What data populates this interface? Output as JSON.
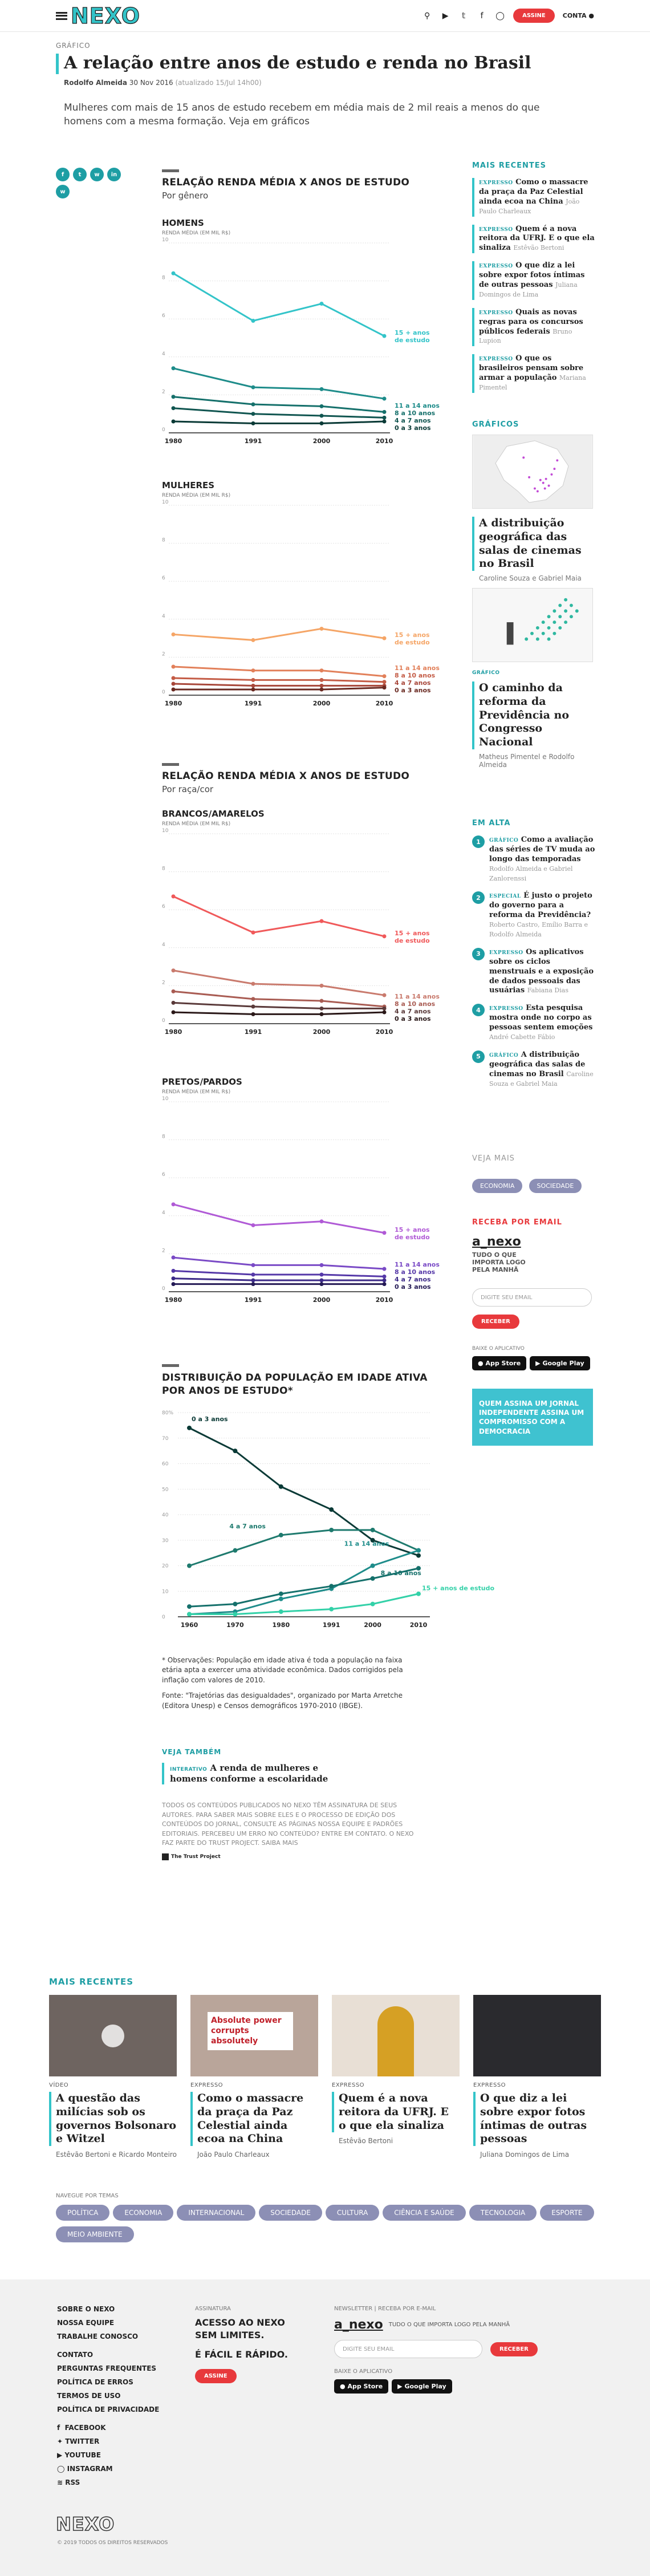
{
  "header": {
    "logo": "NEXO",
    "subscribe": "ASSINE",
    "account": "CONTA"
  },
  "article": {
    "kicker": "GRÁFICO",
    "title": "A relação entre anos de estudo e renda no Brasil",
    "author": "Rodolfo Almeida",
    "date": "30 Nov 2016",
    "updated": "(atualizado 15/Jul 14h00)",
    "lede": "Mulheres com mais de 15 anos de estudo recebem em média mais de 2 mil reais a menos do que homens com a mesma formação. Veja em gráficos"
  },
  "share": [
    "f",
    "t",
    "w",
    "in",
    "w"
  ],
  "section1": {
    "title": "RELAÇÃO RENDA MÉDIA X ANOS DE ESTUDO",
    "subtitle": "Por gênero"
  },
  "section2": {
    "title": "RELAÇÃO RENDA MÉDIA X ANOS DE ESTUDO",
    "subtitle": "Por raça/cor"
  },
  "chart_data": [
    {
      "type": "line",
      "title": "HOMENS",
      "ylabel": "RENDA MÉDIA (EM MIL R$)",
      "x": [
        1980,
        1991,
        2000,
        2010
      ],
      "ylim": [
        0,
        10
      ],
      "yticks": [
        0,
        2,
        4,
        6,
        8,
        10
      ],
      "series": [
        {
          "name": "15 + anos de estudo",
          "values": [
            8.4,
            5.9,
            6.8,
            5.1
          ],
          "color": "#33c4c9"
        },
        {
          "name": "11 a 14 anos",
          "values": [
            3.4,
            2.4,
            2.3,
            1.8
          ],
          "color": "#1e8c8a"
        },
        {
          "name": "8 a 10 anos",
          "values": [
            1.9,
            1.5,
            1.4,
            1.1
          ],
          "color": "#15706b"
        },
        {
          "name": "4 a 7 anos",
          "values": [
            1.3,
            1.0,
            0.9,
            0.8
          ],
          "color": "#105550"
        },
        {
          "name": "0 a 3 anos",
          "values": [
            0.6,
            0.5,
            0.5,
            0.6
          ],
          "color": "#0a3a36"
        }
      ]
    },
    {
      "type": "line",
      "title": "MULHERES",
      "ylabel": "RENDA MÉDIA (EM MIL R$)",
      "x": [
        1980,
        1991,
        2000,
        2010
      ],
      "ylim": [
        0,
        10
      ],
      "yticks": [
        0,
        2,
        4,
        6,
        8,
        10
      ],
      "series": [
        {
          "name": "15 + anos de estudo",
          "values": [
            3.2,
            2.9,
            3.5,
            3.0
          ],
          "color": "#f5a566"
        },
        {
          "name": "11 a 14 anos",
          "values": [
            1.5,
            1.3,
            1.3,
            1.0
          ],
          "color": "#e2805a"
        },
        {
          "name": "8 a 10 anos",
          "values": [
            0.9,
            0.8,
            0.8,
            0.7
          ],
          "color": "#c45c46"
        },
        {
          "name": "4 a 7 anos",
          "values": [
            0.6,
            0.5,
            0.5,
            0.5
          ],
          "color": "#a8473a"
        },
        {
          "name": "0 a 3 anos",
          "values": [
            0.3,
            0.3,
            0.3,
            0.4
          ],
          "color": "#6a2a22"
        }
      ]
    },
    {
      "type": "line",
      "title": "BRANCOS/AMARELOS",
      "ylabel": "RENDA MÉDIA (EM MIL R$)",
      "x": [
        1980,
        1991,
        2000,
        2010
      ],
      "ylim": [
        0,
        10
      ],
      "yticks": [
        0,
        2,
        4,
        6,
        8,
        10
      ],
      "series": [
        {
          "name": "15 + anos de estudo",
          "values": [
            6.7,
            4.8,
            5.4,
            4.6
          ],
          "color": "#f0595a"
        },
        {
          "name": "11 a 14 anos",
          "values": [
            2.8,
            2.1,
            2.0,
            1.5
          ],
          "color": "#c97a6d"
        },
        {
          "name": "8 a 10 anos",
          "values": [
            1.7,
            1.3,
            1.2,
            0.9
          ],
          "color": "#a95c53"
        },
        {
          "name": "4 a 7 anos",
          "values": [
            1.1,
            0.9,
            0.8,
            0.8
          ],
          "color": "#5a3a3a"
        },
        {
          "name": "0 a 3 anos",
          "values": [
            0.6,
            0.5,
            0.5,
            0.6
          ],
          "color": "#2a1818"
        }
      ]
    },
    {
      "type": "line",
      "title": "PRETOS/PARDOS",
      "ylabel": "RENDA MÉDIA (EM MIL R$)",
      "x": [
        1980,
        1991,
        2000,
        2010
      ],
      "ylim": [
        0,
        10
      ],
      "yticks": [
        0,
        2,
        4,
        6,
        8,
        10
      ],
      "series": [
        {
          "name": "15 + anos de estudo",
          "values": [
            4.6,
            3.5,
            3.7,
            3.1
          ],
          "color": "#b05ad6"
        },
        {
          "name": "11 a 14 anos",
          "values": [
            1.8,
            1.4,
            1.4,
            1.2
          ],
          "color": "#7a4ac6"
        },
        {
          "name": "8 a 10 anos",
          "values": [
            1.1,
            0.9,
            0.9,
            0.8
          ],
          "color": "#5538a8"
        },
        {
          "name": "4 a 7 anos",
          "values": [
            0.7,
            0.6,
            0.6,
            0.6
          ],
          "color": "#3c2a88"
        },
        {
          "name": "0 a 3 anos",
          "values": [
            0.4,
            0.4,
            0.4,
            0.4
          ],
          "color": "#241a55"
        }
      ]
    },
    {
      "type": "line",
      "title": "DISTRIBUIÇÃO DA POPULAÇÃO EM IDADE ATIVA POR ANOS DE ESTUDO*",
      "x": [
        1960,
        1970,
        1980,
        1991,
        2000,
        2010
      ],
      "ylim": [
        0,
        80
      ],
      "yticks": [
        0,
        10,
        20,
        30,
        40,
        50,
        60,
        70,
        80
      ],
      "ytick_suffix_top": "80%",
      "series": [
        {
          "name": "0 a 3 anos",
          "values": [
            74,
            65,
            51,
            42,
            30,
            24
          ],
          "color": "#0a3a36"
        },
        {
          "name": "4 a 7 anos",
          "values": [
            20,
            26,
            32,
            34,
            34,
            26
          ],
          "color": "#1e7a6e"
        },
        {
          "name": "11 a 14 anos",
          "values": [
            1,
            2,
            7,
            11,
            20,
            26
          ],
          "color": "#1e8c8a"
        },
        {
          "name": "8 a 10 anos",
          "values": [
            4,
            5,
            9,
            12,
            15,
            19
          ],
          "color": "#15706b"
        },
        {
          "name": "15 + anos de estudo",
          "values": [
            1,
            1,
            2,
            3,
            5,
            9
          ],
          "color": "#33d1a8"
        }
      ]
    }
  ],
  "notes": {
    "obs": "* Observações: População em idade ativa é toda a população na faixa etária apta a exercer uma atividade econômica. Dados corrigidos pela inflação com valores de 2010.",
    "source": "Fonte: \"Trajetórias das desigualdades\", organizado por Marta Arretche (Editora Unesp) e Censos demográficos 1970-2010 (IBGE)."
  },
  "veja_tambem": {
    "label": "VEJA TAMBÉM",
    "tag": "INTERATIVO",
    "title": "A renda de mulheres e homens conforme a escolaridade"
  },
  "fineprint": "TODOS OS CONTEÚDOS PUBLICADOS NO NEXO TÊM ASSINATURA DE SEUS AUTORES. PARA SABER MAIS SOBRE ELES E O PROCESSO DE EDIÇÃO DOS CONTEÚDOS DO JORNAL, CONSULTE AS PÁGINAS NOSSA EQUIPE E PADRÕES EDITORIAIS. PERCEBEU UM ERRO NO CONTEÚDO? ENTRE EM CONTATO. O NEXO FAZ PARTE DO TRUST PROJECT. SAIBA MAIS",
  "trust": "The Trust Project",
  "sidebar": {
    "mais_recentes_label": "MAIS RECENTES",
    "mais_recentes": [
      {
        "tag": "EXPRESSO",
        "title": "Como o massacre da praça da Paz Celestial ainda ecoa na China",
        "author": "João Paulo Charleaux"
      },
      {
        "tag": "EXPRESSO",
        "title": "Quem é a nova reitora da UFRJ. E o que ela sinaliza",
        "author": "Estêvão Bertoni"
      },
      {
        "tag": "EXPRESSO",
        "title": "O que diz a lei sobre expor fotos íntimas de outras pessoas",
        "author": "Juliana Domingos de Lima"
      },
      {
        "tag": "EXPRESSO",
        "title": "Quais as novas regras para os concursos públicos federais",
        "author": "Bruno Lupion"
      },
      {
        "tag": "EXPRESSO",
        "title": "O que os brasileiros pensam sobre armar a população",
        "author": "Mariana Pimentel"
      }
    ],
    "graficos_label": "GRÁFICOS",
    "graficos": [
      {
        "title": "A distribuição geográfica das salas de cinemas no Brasil",
        "author": "Caroline Souza e Gabriel Maia"
      },
      {
        "tag": "GRÁFICO",
        "title": "O caminho da reforma da Previdência no Congresso Nacional",
        "author": "Matheus Pimentel e Rodolfo Almeida"
      }
    ],
    "em_alta_label": "EM ALTA",
    "em_alta": [
      {
        "n": "1",
        "tag": "GRÁFICO",
        "title": "Como a avaliação das séries de TV muda ao longo das temporadas",
        "author": "Rodolfo Almeida e Gabriel Zanlorenssi"
      },
      {
        "n": "2",
        "tag": "ESPECIAL",
        "title": "É justo o projeto do governo para a reforma da Previdência?",
        "author": "Roberto Castro, Emílio Barra e Rodolfo Almeida"
      },
      {
        "n": "3",
        "tag": "EXPRESSO",
        "title": "Os aplicativos sobre os ciclos menstruais e a exposição de dados pessoais das usuárias",
        "author": "Fabiana Dias"
      },
      {
        "n": "4",
        "tag": "EXPRESSO",
        "title": "Esta pesquisa mostra onde no corpo as pessoas sentem emoções",
        "author": "André Cabette Fábio"
      },
      {
        "n": "5",
        "tag": "GRÁFICO",
        "title": "A distribuição geográfica das salas de cinemas no Brasil",
        "author": "Caroline Souza e Gabriel Maia"
      }
    ],
    "veja_mais_label": "VEJA MAIS",
    "veja_mais": [
      "ECONOMIA",
      "SOCIEDADE"
    ],
    "receba_label": "RECEBA POR EMAIL",
    "newsletter_name": "a_nexo",
    "newsletter_desc": "TUDO O QUE IMPORTA LOGO PELA MANHÃ",
    "email_placeholder": "DIGITE SEU EMAIL",
    "receive_btn": "RECEBER",
    "app_label": "BAIXE O APLICATIVO",
    "appstore": "App Store",
    "googleplay": "Google Play",
    "promo": "QUEM ASSINA UM JORNAL INDEPENDENTE ASSINA UM COMPROMISSO COM A DEMOCRACIA"
  },
  "bottom_recent": {
    "label": "MAIS RECENTES",
    "cards": [
      {
        "tag": "VÍDEO",
        "title": "A questão das milícias sob os governos Bolsonaro e Witzel",
        "author": "Estêvão Bertoni e Ricardo Monteiro"
      },
      {
        "tag": "EXPRESSO",
        "title": "Como o massacre da praça da Paz Celestial ainda ecoa na China",
        "author": "João Paulo Charleaux",
        "img_text": "Absolute power corrupts absolutely"
      },
      {
        "tag": "EXPRESSO",
        "title": "Quem é a nova reitora da UFRJ. E o que ela sinaliza",
        "author": "Estêvão Bertoni"
      },
      {
        "tag": "EXPRESSO",
        "title": "O que diz a lei sobre expor fotos íntimas de outras pessoas",
        "author": "Juliana Domingos de Lima"
      }
    ]
  },
  "temas": {
    "label": "NAVEGUE POR TEMAS",
    "items": [
      "POLÍTICA",
      "ECONOMIA",
      "INTERNACIONAL",
      "SOCIEDADE",
      "CULTURA",
      "CIÊNCIA E SAÚDE",
      "TECNOLOGIA",
      "ESPORTE",
      "MEIO AMBIENTE"
    ]
  },
  "footer": {
    "col1": [
      "SOBRE O NEXO",
      "NOSSA EQUIPE",
      "TRABALHE CONOSCO"
    ],
    "col1b": [
      "CONTATO",
      "PERGUNTAS FREQUENTES",
      "POLÍTICA DE ERROS",
      "TERMOS DE USO",
      "POLÍTICA DE PRIVACIDADE"
    ],
    "social": [
      "FACEBOOK",
      "TWITTER",
      "YOUTUBE",
      "INSTAGRAM",
      "RSS"
    ],
    "assinatura_label": "ASSINATURA",
    "assinatura_text": "ACESSO AO NEXO SEM LIMITES.",
    "assinatura_text2": "É FÁCIL E RÁPIDO.",
    "assine": "ASSINE",
    "newsletter_label": "NEWSLETTER | RECEBA POR E-MAIL",
    "newsletter_name": "a_nexo",
    "newsletter_desc": "TUDO O QUE IMPORTA LOGO PELA MANHÃ",
    "email_placeholder": "DIGITE SEU EMAIL",
    "receive": "RECEBER",
    "app_label": "BAIXE O APLICATIVO",
    "appstore": "App Store",
    "googleplay": "Google Play",
    "logo": "NEXO",
    "copyright": "© 2019 TODOS OS DIREITOS RESERVADOS"
  }
}
